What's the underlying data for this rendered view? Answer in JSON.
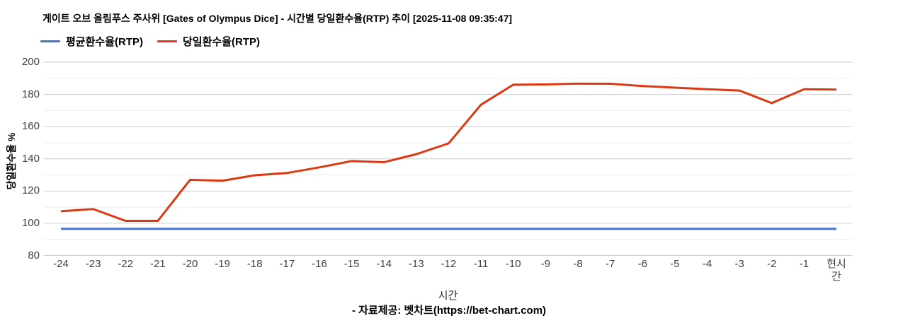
{
  "header": {
    "title": "게이트 오브 올림푸스 주사위 [Gates of Olympus Dice] - 시간별 당일환수율(RTP) 추이 [2025-11-08 09:35:47]"
  },
  "footer": {
    "credit": "- 자료제공: 벳차트(https://bet-chart.com)"
  },
  "colors": {
    "average_line": "#4372cf",
    "daily_line": "#dc3912",
    "major_gridline": "#cccccc",
    "minor_gridline": "#ededed",
    "tick_text": "#404040"
  },
  "chart_data": {
    "type": "line",
    "title": "게이트 오브 올림푸스 주사위 [Gates of Olympus Dice] - 시간별 당일환수율(RTP) 추이 [2025-11-08 09:35:47]",
    "xlabel": "시간",
    "ylabel": "당일환수율 %",
    "ylim": [
      80,
      200
    ],
    "y_major_ticks": [
      80,
      100,
      120,
      140,
      160,
      180,
      200
    ],
    "grid": true,
    "legend_position": "top-left",
    "categories": [
      "-24",
      "-23",
      "-22",
      "-21",
      "-20",
      "-19",
      "-18",
      "-17",
      "-16",
      "-15",
      "-14",
      "-13",
      "-12",
      "-11",
      "-10",
      "-9",
      "-8",
      "-7",
      "-6",
      "-5",
      "-4",
      "-3",
      "-2",
      "-1",
      "현시간"
    ],
    "series": [
      {
        "name": "평균환수율(RTP)",
        "color": "#4372cf",
        "values": [
          96.5,
          96.5,
          96.5,
          96.5,
          96.5,
          96.5,
          96.5,
          96.5,
          96.5,
          96.5,
          96.5,
          96.5,
          96.5,
          96.5,
          96.5,
          96.5,
          96.5,
          96.5,
          96.5,
          96.5,
          96.5,
          96.5,
          96.5,
          96.5,
          96.5
        ]
      },
      {
        "name": "당일환수율(RTP)",
        "color": "#dc3912",
        "values": [
          107.5,
          108.8,
          101.5,
          101.5,
          127,
          126.4,
          129.8,
          131.2,
          134.7,
          138.6,
          137.9,
          142.9,
          149.6,
          173.6,
          186,
          186.2,
          186.7,
          186.6,
          185.2,
          184.2,
          183.2,
          182.4,
          174.6,
          183.2,
          183
        ]
      }
    ]
  }
}
